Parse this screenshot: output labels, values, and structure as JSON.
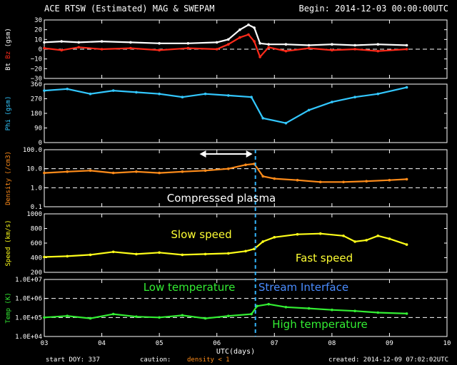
{
  "header": {
    "title": "ACE RTSW (Estimated) MAG & SWEPAM",
    "begin": "Begin: 2014-12-03 00:00:00UTC"
  },
  "footer": {
    "start_doy": "start DOY: 337",
    "caution_label": "caution:",
    "caution_value": "density < 1",
    "created": "created: 2014-12-09 07:02:02UTC"
  },
  "colors": {
    "bt": "#ffffff",
    "bz": "#ff2a1a",
    "phi": "#33c8ff",
    "density": "#ff8c1a",
    "speed": "#ffff1a",
    "temp": "#33ee33",
    "interface_line": "#33b5ff",
    "stream_label": "#4a8cff",
    "axis": "#ffffff"
  },
  "chart_data": {
    "type": "line",
    "x_axis": {
      "label": "UTC(days)",
      "range": [
        3,
        10
      ],
      "ticks": [
        "03",
        "04",
        "05",
        "06",
        "07",
        "08",
        "09",
        "10"
      ]
    },
    "panels": [
      {
        "id": "mag",
        "ylabel_parts": [
          {
            "text": "Bt",
            "color": "#ffffff"
          },
          {
            "text": " Bz",
            "color": "#ff2a1a"
          },
          {
            "text": " (gsm)",
            "color": "#ffffff"
          }
        ],
        "ylim": [
          -30,
          30
        ],
        "ticks": [
          "30",
          "20",
          "10",
          "0",
          "−10",
          "−20",
          "−30"
        ],
        "tick_values": [
          30,
          20,
          10,
          0,
          -10,
          -20,
          -30
        ],
        "dashed": [
          0
        ],
        "series": [
          {
            "name": "Bt",
            "color": "#ffffff",
            "x": [
              3.0,
              3.3,
              3.6,
              4.0,
              4.5,
              5.0,
              5.5,
              6.0,
              6.2,
              6.4,
              6.55,
              6.65,
              6.75,
              6.9,
              7.2,
              7.6,
              8.0,
              8.4,
              8.8,
              9.3
            ],
            "y": [
              7,
              8,
              7,
              8,
              7,
              6,
              6,
              7,
              10,
              20,
              25,
              22,
              6,
              5,
              5,
              4,
              5,
              4,
              5,
              4
            ]
          },
          {
            "name": "Bz",
            "color": "#ff2a1a",
            "x": [
              3.0,
              3.3,
              3.6,
              4.0,
              4.5,
              5.0,
              5.5,
              6.0,
              6.2,
              6.4,
              6.55,
              6.65,
              6.75,
              6.9,
              7.2,
              7.6,
              8.0,
              8.4,
              8.8,
              9.3
            ],
            "y": [
              1,
              -1,
              2,
              0,
              1,
              -1,
              1,
              0,
              5,
              12,
              15,
              8,
              -8,
              2,
              -2,
              1,
              -1,
              0,
              -2,
              0
            ]
          }
        ]
      },
      {
        "id": "phi",
        "ylabel_parts": [
          {
            "text": "Phi (gsm)",
            "color": "#33c8ff"
          }
        ],
        "ylim": [
          0,
          360
        ],
        "ticks": [
          "360",
          "270",
          "180",
          "90",
          "0"
        ],
        "tick_values": [
          360,
          270,
          180,
          90,
          0
        ],
        "dashed": [],
        "series": [
          {
            "name": "Phi",
            "color": "#33c8ff",
            "x": [
              3.0,
              3.4,
              3.8,
              4.2,
              4.6,
              5.0,
              5.4,
              5.8,
              6.2,
              6.6,
              6.8,
              7.2,
              7.6,
              8.0,
              8.4,
              8.8,
              9.3
            ],
            "y": [
              320,
              330,
              300,
              320,
              310,
              300,
              280,
              300,
              290,
              280,
              150,
              120,
              200,
              250,
              280,
              300,
              340
            ]
          }
        ]
      },
      {
        "id": "density",
        "ylabel_parts": [
          {
            "text": "Density (/cm3)",
            "color": "#ff8c1a"
          }
        ],
        "ylim": [
          0.1,
          100
        ],
        "log": true,
        "ticks": [
          "100.0",
          "10.0",
          "1.0",
          "0.1"
        ],
        "tick_values": [
          100,
          10,
          1,
          0.1
        ],
        "dashed": [
          10,
          1
        ],
        "series": [
          {
            "name": "Density",
            "color": "#ff8c1a",
            "x": [
              3.0,
              3.4,
              3.8,
              4.2,
              4.6,
              5.0,
              5.4,
              5.8,
              6.2,
              6.5,
              6.65,
              6.8,
              7.0,
              7.4,
              7.8,
              8.2,
              8.6,
              9.0,
              9.3
            ],
            "y": [
              6,
              7,
              8,
              6,
              7,
              6,
              7,
              8,
              10,
              16,
              18,
              4,
              3,
              2.5,
              2,
              2,
              2.2,
              2.5,
              2.8
            ]
          }
        ]
      },
      {
        "id": "speed",
        "ylabel_parts": [
          {
            "text": "Speed (km/s)",
            "color": "#ffff1a"
          }
        ],
        "ylim": [
          200,
          1000
        ],
        "ticks": [
          "1000",
          "800",
          "600",
          "400",
          "200"
        ],
        "tick_values": [
          1000,
          800,
          600,
          400,
          200
        ],
        "dashed": [],
        "series": [
          {
            "name": "Speed",
            "color": "#ffff1a",
            "x": [
              3.0,
              3.4,
              3.8,
              4.2,
              4.6,
              5.0,
              5.4,
              5.8,
              6.2,
              6.5,
              6.65,
              6.8,
              7.0,
              7.4,
              7.8,
              8.2,
              8.4,
              8.6,
              8.8,
              9.0,
              9.3
            ],
            "y": [
              410,
              420,
              440,
              480,
              450,
              470,
              440,
              450,
              460,
              490,
              520,
              620,
              680,
              720,
              730,
              700,
              620,
              640,
              700,
              660,
              580
            ]
          }
        ]
      },
      {
        "id": "temp",
        "ylabel_parts": [
          {
            "text": "Temp (K)",
            "color": "#33ee33"
          }
        ],
        "ylim": [
          10000,
          10000000
        ],
        "log": true,
        "ticks": [
          "1.0E+07",
          "1.0E+06",
          "1.0E+05",
          "1.0E+04"
        ],
        "tick_values": [
          10000000,
          1000000,
          100000,
          10000
        ],
        "dashed": [
          1000000,
          100000
        ],
        "series": [
          {
            "name": "Temp",
            "color": "#33ee33",
            "x": [
              3.0,
              3.4,
              3.8,
              4.2,
              4.6,
              5.0,
              5.4,
              5.8,
              6.2,
              6.6,
              6.7,
              6.9,
              7.2,
              7.6,
              8.0,
              8.4,
              8.8,
              9.3
            ],
            "y": [
              100000,
              120000,
              90000,
              150000,
              110000,
              100000,
              130000,
              90000,
              120000,
              150000,
              400000,
              500000,
              350000,
              300000,
              250000,
              220000,
              180000,
              160000
            ]
          }
        ]
      }
    ],
    "annotations": [
      {
        "text": "Compressed plasma",
        "color": "#ffffff"
      },
      {
        "text": "Slow speed",
        "color": "#ffff33"
      },
      {
        "text": "Fast speed",
        "color": "#ffff33"
      },
      {
        "text": "Low temperature",
        "color": "#33ee33"
      },
      {
        "text": "Stream Interface",
        "color": "#4a8cff"
      },
      {
        "text": "High temperature",
        "color": "#33ee33"
      }
    ],
    "interface_x": 6.67,
    "compression_arrow": [
      5.7,
      6.67
    ]
  }
}
